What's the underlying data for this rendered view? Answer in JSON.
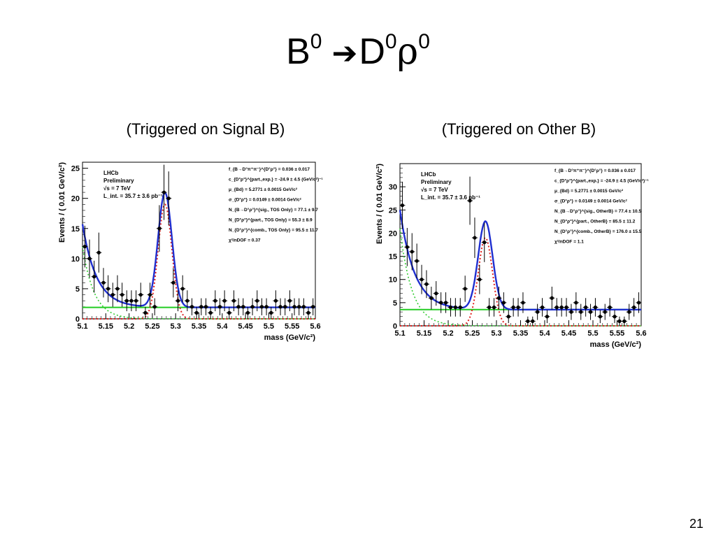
{
  "slide": {
    "title_parts": [
      "B",
      "0",
      "D",
      "0",
      "ρ",
      "0"
    ],
    "page_number": "21"
  },
  "subtitles": {
    "left": "(Triggered on Signal B)",
    "right": "(Triggered on Other B)"
  },
  "colors": {
    "total_fit": "#1f2fd0",
    "signal": "#e0201e",
    "background_flat": "#22cc22",
    "partial_bkg": "#33cc33",
    "points": "#000000"
  },
  "chart_data": [
    {
      "type": "scatter",
      "ylabel": "Events / ( 0.01 GeV/c²)",
      "xlabel": "mass (GeV/c²)",
      "xlim": [
        5.1,
        5.6
      ],
      "ylim": [
        0,
        26
      ],
      "yticks": [
        0,
        5,
        10,
        15,
        20,
        25
      ],
      "xticks": [
        "5.1",
        "5.15",
        "5.2",
        "5.25",
        "5.3",
        "5.35",
        "5.4",
        "5.45",
        "5.5",
        "5.55",
        "5.6"
      ],
      "legend_text": [
        "LHCb",
        "Preliminary",
        "√s = 7 TeV",
        "L_int. = 35.7 ± 3.6 pb⁻¹"
      ],
      "fit_params": [
        "f_{B→D°π⁺π⁻}^{D°ρ°} = 0.036 ± 0.017",
        "c_{D°ρ°}^{part.,exp.} = -24.9 ± 4.5 (GeV/c²)⁻¹",
        "μ_{Bd} = 5.2771 ± 0.0015 GeV/c²",
        "σ_{D°ρ°} = 0.0149 ± 0.0014 GeV/c²",
        "N_{B→D°ρ°}^{sig., TOS Only} = 77.1 ± 9.7",
        "N_{D°ρ°}^{part., TOS Only} = 55.3 ± 8.9",
        "N_{D°ρ°}^{comb., TOS Only} = 95.5 ± 11.7",
        "χ²/nDOF = 0.37"
      ],
      "data_x": [
        5.105,
        5.115,
        5.125,
        5.135,
        5.145,
        5.155,
        5.165,
        5.175,
        5.185,
        5.195,
        5.205,
        5.215,
        5.225,
        5.235,
        5.245,
        5.255,
        5.265,
        5.275,
        5.285,
        5.295,
        5.305,
        5.315,
        5.325,
        5.335,
        5.345,
        5.355,
        5.365,
        5.375,
        5.385,
        5.395,
        5.405,
        5.415,
        5.425,
        5.435,
        5.445,
        5.455,
        5.465,
        5.475,
        5.485,
        5.495,
        5.505,
        5.515,
        5.525,
        5.535,
        5.545,
        5.555,
        5.565,
        5.575,
        5.585,
        5.595
      ],
      "data_y": [
        12,
        10,
        7,
        11,
        6,
        5,
        4,
        5,
        4,
        3,
        3,
        3,
        4,
        1,
        4,
        2,
        15,
        21,
        20,
        6,
        3,
        5,
        3,
        2,
        1,
        2,
        2,
        1,
        3,
        2,
        3,
        1,
        3,
        2,
        2,
        1,
        2,
        3,
        2,
        2,
        1,
        3,
        2,
        2,
        3,
        2,
        2,
        2,
        1,
        2
      ],
      "series": [
        {
          "name": "total fit",
          "flat": 1.9,
          "comb_amp": 13.8,
          "comb_slope": 24.9,
          "sig_amp": 19.0
        },
        {
          "name": "signal",
          "sig_amp": 19.0
        },
        {
          "name": "partial background",
          "comb_amp": 12.0,
          "comb_slope": 40
        },
        {
          "name": "combinatorial",
          "flat": 1.9
        }
      ],
      "mu": 5.2771,
      "sigma": 0.0149
    },
    {
      "type": "scatter",
      "ylabel": "Events / ( 0.01 GeV/c²)",
      "xlabel": "mass (GeV/c²)",
      "xlim": [
        5.1,
        5.6
      ],
      "ylim": [
        0,
        35
      ],
      "yticks": [
        0,
        5,
        10,
        15,
        20,
        25,
        30
      ],
      "xticks": [
        "5.1",
        "5.15",
        "5.2",
        "5.25",
        "5.3",
        "5.35",
        "5.4",
        "5.45",
        "5.5",
        "5.55",
        "5.6"
      ],
      "legend_text": [
        "LHCb",
        "Preliminary",
        "√s = 7 TeV",
        "L_int. = 35.7 ± 3.6 pb⁻¹"
      ],
      "fit_params": [
        "f_{B→D°π⁺π⁻}^{D°ρ°} = 0.036 ± 0.017",
        "c_{D°ρ°}^{part.,exp.} = -24.9 ± 4.5 (GeV/c²)⁻¹",
        "μ_{Bd} = 5.2771 ± 0.0015 GeV/c²",
        "σ_{D°ρ°} = 0.0149 ± 0.0014 GeV/c²",
        "N_{B→D°ρ°}^{sig., OtherB} = 77.4 ± 10.5",
        "N_{D°ρ°}^{part., OtherB} = 85.5 ± 11.2",
        "N_{D°ρ°}^{comb., OtherB} = 176.0 ± 15.5",
        "χ²/nDOF = 1.1"
      ],
      "data_x": [
        5.105,
        5.115,
        5.125,
        5.135,
        5.145,
        5.155,
        5.165,
        5.175,
        5.185,
        5.195,
        5.205,
        5.215,
        5.225,
        5.235,
        5.245,
        5.255,
        5.265,
        5.275,
        5.285,
        5.295,
        5.305,
        5.315,
        5.325,
        5.335,
        5.345,
        5.355,
        5.365,
        5.375,
        5.385,
        5.395,
        5.405,
        5.415,
        5.425,
        5.435,
        5.445,
        5.455,
        5.465,
        5.475,
        5.485,
        5.495,
        5.505,
        5.515,
        5.525,
        5.535,
        5.545,
        5.555,
        5.565,
        5.575,
        5.585,
        5.595
      ],
      "data_y": [
        26,
        17,
        16,
        14,
        10,
        9,
        6,
        7,
        5,
        5,
        4,
        4,
        4,
        8,
        27,
        19,
        10,
        18,
        4,
        4,
        6,
        5,
        2,
        4,
        4,
        5,
        1,
        1,
        3,
        4,
        2,
        6,
        4,
        4,
        4,
        3,
        5,
        3,
        4,
        3,
        4,
        2,
        3,
        4,
        2,
        1,
        1,
        3,
        4,
        5
      ],
      "series": [
        {
          "name": "total fit",
          "flat": 3.5,
          "comb_amp": 21.5,
          "comb_slope": 24.9,
          "sig_amp": 19.0
        },
        {
          "name": "signal",
          "sig_amp": 19.0
        },
        {
          "name": "partial background",
          "comb_amp": 21.0,
          "comb_slope": 40
        },
        {
          "name": "combinatorial",
          "flat": 3.5
        }
      ],
      "mu": 5.2771,
      "sigma": 0.0149
    }
  ]
}
